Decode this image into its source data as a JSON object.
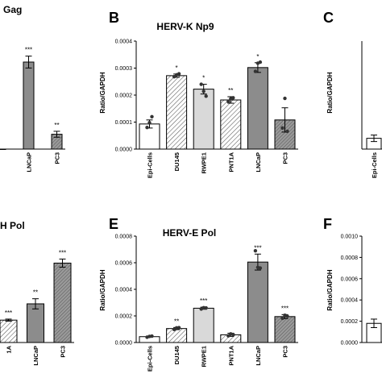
{
  "figure": {
    "panels": [
      {
        "id": "A",
        "label": "",
        "title": "Gag"
      },
      {
        "id": "B",
        "label": "B",
        "title": "HERV-K Np9"
      },
      {
        "id": "C",
        "label": "C",
        "title": ""
      },
      {
        "id": "D",
        "label": "",
        "title": "H Pol"
      },
      {
        "id": "E",
        "label": "E",
        "title": "HERV-E Pol"
      },
      {
        "id": "F",
        "label": "F",
        "title": ""
      }
    ]
  },
  "chart_data": [
    {
      "id": "A",
      "type": "bar",
      "title": "Gag",
      "categories": [
        "",
        "LNCaP",
        "PC3"
      ],
      "values": [
        0.0,
        0.88,
        0.15
      ],
      "errors": [
        0,
        0.06,
        0.03
      ],
      "significance": [
        "",
        "***",
        "**"
      ],
      "ylim": [
        0,
        1.1
      ]
    },
    {
      "id": "B",
      "type": "bar",
      "title": "HERV-K Np9",
      "ylabel": "Ratio/GAPDH",
      "categories": [
        "Epi-Cells",
        "DU145",
        "RWPE1",
        "PNT1A",
        "LNCaP",
        "PC3"
      ],
      "values": [
        9.3e-05,
        0.000272,
        0.000222,
        0.000182,
        0.000302,
        0.000108
      ],
      "errors": [
        1.5e-05,
        6e-06,
        1.8e-05,
        1.2e-05,
        1.8e-05,
        4.5e-05
      ],
      "points": [
        [
          8e-05,
          9.8e-05,
          0.00012
        ],
        [
          0.000268,
          0.000275,
          0.000279
        ],
        [
          0.00024,
          0.000214,
          0.000196
        ],
        [
          0.000176,
          0.000186,
          0.00019
        ],
        [
          0.000288,
          0.000318,
          0.000322
        ],
        [
          7.8e-05,
          0.000188,
          6.6e-05
        ]
      ],
      "significance": [
        "",
        "*",
        "*",
        "**",
        "*",
        ""
      ],
      "yticks": [
        "0.0000",
        "0.0001",
        "0.0002",
        "0.0003",
        "0.0004"
      ],
      "ylim": [
        0,
        0.0004
      ]
    },
    {
      "id": "C",
      "type": "bar",
      "ylabel": "Ratio/GAPDH",
      "categories": [
        "Epi-Cells"
      ],
      "values": [
        0.1
      ],
      "errors": [
        0.03
      ],
      "ylim": [
        0,
        1
      ]
    },
    {
      "id": "D",
      "type": "bar",
      "title": "H Pol",
      "categories": [
        "1A",
        "LNCaP",
        "PC3"
      ],
      "values": [
        0.22,
        0.38,
        0.78
      ],
      "errors": [
        0.01,
        0.05,
        0.04
      ],
      "significance": [
        "***",
        "**",
        "***"
      ],
      "ylim": [
        0,
        0.95
      ]
    },
    {
      "id": "E",
      "type": "bar",
      "title": "HERV-E Pol",
      "ylabel": "Ratio/GAPDH",
      "categories": [
        "Epi-Cells",
        "DU145",
        "RWPE1",
        "PNT1A",
        "LNCaP",
        "PC3"
      ],
      "values": [
        4.4e-05,
        0.000105,
        0.000258,
        5.8e-05,
        0.000605,
        0.000195
      ],
      "errors": [
        5e-06,
        8e-06,
        8e-06,
        1.2e-05,
        6e-05,
        1.5e-05
      ],
      "points": [
        [
          4e-05,
          4.6e-05,
          4.8e-05
        ],
        [
          9.8e-05,
          0.00011,
          0.000112
        ],
        [
          0.000252,
          0.000262,
          0.00026
        ],
        [
          5e-05,
          6.5e-05,
          6e-05
        ],
        [
          0.00069,
          0.000565,
          0.00056
        ],
        [
          0.000182,
          0.000205,
          0.000198
        ]
      ],
      "significance": [
        "",
        "**",
        "***",
        "",
        "***",
        "***"
      ],
      "yticks": [
        "0.0000",
        "0.0002",
        "0.0004",
        "0.0006",
        "0.0008"
      ],
      "ylim": [
        0,
        0.0008
      ]
    },
    {
      "id": "F",
      "type": "bar",
      "ylabel": "Ratio/GAPDH",
      "categories": [
        ""
      ],
      "values": [
        0.00018
      ],
      "errors": [
        4e-05
      ],
      "yticks": [
        "0.0000",
        "0.0002",
        "0.0004",
        "0.0006",
        "0.0008",
        "0.0010"
      ],
      "ylim": [
        0,
        0.001
      ]
    }
  ]
}
